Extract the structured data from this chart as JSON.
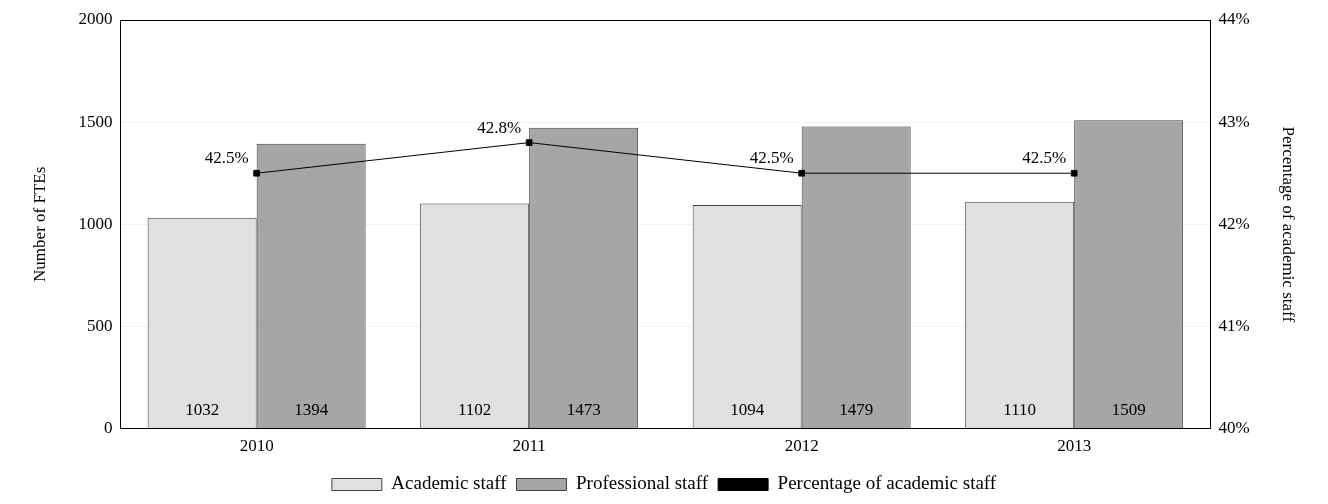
{
  "chart_data": {
    "type": "bar",
    "categories": [
      "2010",
      "2011",
      "2012",
      "2013"
    ],
    "ylabel": "Number of FTEs",
    "y2label": "Percentage of academic staff",
    "ylim": [
      0,
      2000
    ],
    "yticks": [
      0,
      500,
      1000,
      1500,
      2000
    ],
    "y2lim": [
      40,
      44
    ],
    "y2ticks": [
      {
        "value": 40,
        "label": "40%"
      },
      {
        "value": 41,
        "label": "41%"
      },
      {
        "value": 42,
        "label": "42%"
      },
      {
        "value": 43,
        "label": "43%"
      },
      {
        "value": 44,
        "label": "44%"
      }
    ],
    "grid": "y",
    "legend": "bottom",
    "marker": "square",
    "series": [
      {
        "name": "Academic staff",
        "color": "#e0e0e0",
        "values": [
          1032,
          1102,
          1094,
          1110
        ],
        "value_labels": [
          "1032",
          "1102",
          "1094",
          "1110"
        ]
      },
      {
        "name": "Professional staff",
        "color": "#a6a6a6",
        "values": [
          1394,
          1473,
          1479,
          1509
        ],
        "value_labels": [
          "1394",
          "1473",
          "1479",
          "1509"
        ]
      },
      {
        "name": "Percentage of academic staff",
        "type": "line",
        "axis": "y2",
        "color": "#000000",
        "values": [
          42.5,
          42.8,
          42.5,
          42.5
        ],
        "value_labels": [
          "42.5%",
          "42.8%",
          "42.5%",
          "42.5%"
        ]
      }
    ]
  }
}
